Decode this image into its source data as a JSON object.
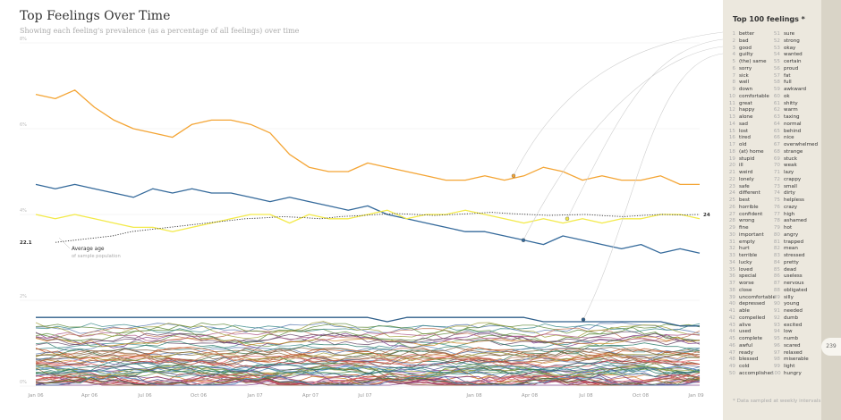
{
  "chart_data": {
    "type": "line",
    "title": "Top Feelings Over Time",
    "subtitle": "Showing each feeling's prevalence (as a percentage of all feelings) over time",
    "x_ticks": [
      "Jan 06",
      "Apr 06",
      "Jul 06",
      "Oct 06",
      "Jan 07",
      "Apr 07",
      "Jul 07",
      "Jan 08",
      "Apr 08",
      "Jul 08",
      "Oct 08",
      "Jan 09"
    ],
    "y_ticks": [
      "0%",
      "2%",
      "4%",
      "6%",
      "8%"
    ],
    "ylim": [
      0,
      8
    ],
    "grid": true,
    "series": [
      {
        "color": "#f4a535",
        "values": [
          6.8,
          6.7,
          6.9,
          6.5,
          6.2,
          6.0,
          5.9,
          5.8,
          6.1,
          6.2,
          6.2,
          6.1,
          5.9,
          5.4,
          5.1,
          5.0,
          5.0,
          5.2,
          5.1,
          5.0,
          4.9,
          4.8,
          4.8,
          4.9,
          4.8,
          4.9,
          5.1,
          5.0,
          4.8,
          4.9,
          4.8,
          4.8,
          4.9,
          4.7,
          4.7
        ]
      },
      {
        "color": "#356a9b",
        "values": [
          4.7,
          4.6,
          4.7,
          4.6,
          4.5,
          4.4,
          4.6,
          4.5,
          4.6,
          4.5,
          4.5,
          4.4,
          4.3,
          4.4,
          4.3,
          4.2,
          4.1,
          4.2,
          4.0,
          3.9,
          3.8,
          3.7,
          3.6,
          3.6,
          3.5,
          3.4,
          3.3,
          3.5,
          3.4,
          3.3,
          3.2,
          3.3,
          3.1,
          3.2,
          3.1
        ]
      },
      {
        "color": "#f3ea4a",
        "values": [
          4.0,
          3.9,
          4.0,
          3.9,
          3.8,
          3.7,
          3.7,
          3.6,
          3.7,
          3.8,
          3.9,
          4.0,
          4.0,
          3.8,
          4.0,
          3.9,
          3.9,
          4.0,
          4.1,
          3.9,
          4.0,
          4.0,
          4.1,
          4.0,
          3.9,
          3.8,
          3.9,
          3.8,
          3.9,
          3.8,
          3.9,
          3.9,
          4.0,
          4.0,
          3.9
        ]
      },
      {
        "color": "#2f5f8a",
        "values": [
          1.6,
          1.6,
          1.6,
          1.6,
          1.6,
          1.6,
          1.6,
          1.6,
          1.6,
          1.6,
          1.6,
          1.6,
          1.6,
          1.6,
          1.6,
          1.6,
          1.6,
          1.6,
          1.5,
          1.6,
          1.6,
          1.6,
          1.6,
          1.6,
          1.6,
          1.6,
          1.5,
          1.5,
          1.5,
          1.5,
          1.5,
          1.5,
          1.5,
          1.4,
          1.4
        ]
      }
    ],
    "age_series": {
      "name": "Average age",
      "sublabel": "of sample population",
      "start_label": "22.1",
      "end_label": "24",
      "color": "#333333"
    },
    "background_series_count": 60,
    "background_palette": [
      "#9b3a5a",
      "#5d8a3a",
      "#c65a2a",
      "#4a4a8a",
      "#3a8a8a",
      "#8a6a3a",
      "#c93a3a",
      "#7a3a8a",
      "#3a6a3a",
      "#d08a2a",
      "#5a7ab0",
      "#b05a8a",
      "#6a9a4a",
      "#a0a03a",
      "#2a7a6a",
      "#c07050",
      "#7a5a3a",
      "#4a8ac0",
      "#e06a6a",
      "#6a4a6a"
    ]
  },
  "sidebar": {
    "title": "Top 100 feelings *",
    "footnote": "* Data sampled at weekly intervals",
    "feelings": [
      "better",
      "bad",
      "good",
      "guilty",
      "(the) same",
      "sorry",
      "sick",
      "well",
      "down",
      "comfortable",
      "great",
      "happy",
      "alone",
      "sad",
      "lost",
      "tired",
      "old",
      "(at) home",
      "stupid",
      "ill",
      "weird",
      "lonely",
      "safe",
      "different",
      "best",
      "horrible",
      "confident",
      "wrong",
      "fine",
      "important",
      "empty",
      "hurt",
      "terrible",
      "lucky",
      "loved",
      "special",
      "worse",
      "close",
      "uncomfortable",
      "depressed",
      "able",
      "compelled",
      "alive",
      "used",
      "complete",
      "awful",
      "ready",
      "blessed",
      "cold",
      "accomplished",
      "sure",
      "strong",
      "okay",
      "wanted",
      "certain",
      "proud",
      "fat",
      "full",
      "awkward",
      "ok",
      "shitty",
      "warm",
      "taxing",
      "normal",
      "behind",
      "nice",
      "overwhelmed",
      "strange",
      "stuck",
      "weak",
      "lazy",
      "crappy",
      "small",
      "dirty",
      "helpless",
      "crazy",
      "high",
      "ashamed",
      "hot",
      "angry",
      "trapped",
      "mean",
      "stressed",
      "pretty",
      "dead",
      "useless",
      "nervous",
      "obligated",
      "silly",
      "young",
      "needed",
      "dumb",
      "excited",
      "low",
      "numb",
      "scared",
      "relaxed",
      "miserable",
      "light",
      "hungry"
    ]
  },
  "page_number": "239",
  "colors": {
    "accent": "#f4a535",
    "primary_line": "#356a9b",
    "sidebar_bg": "#ece8de"
  }
}
